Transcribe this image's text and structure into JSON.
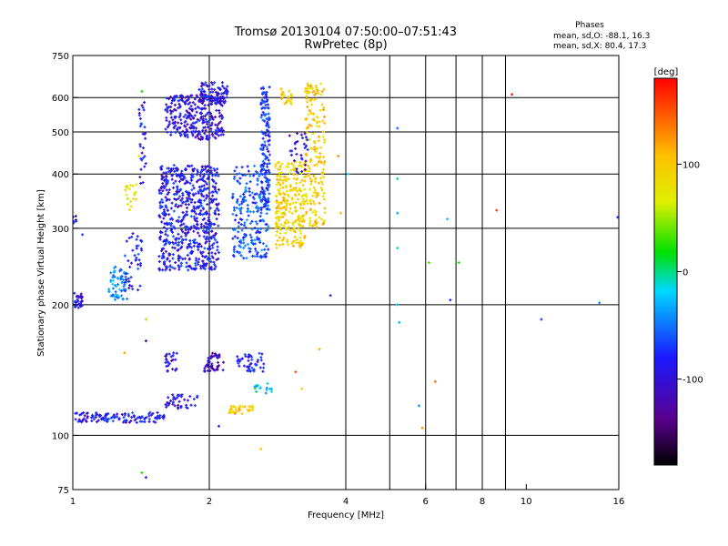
{
  "chart_data": {
    "type": "scatter",
    "title": "Tromsø 20130104 07:50:00–07:51:43",
    "subtitle": "RwPretec (8p)",
    "xlabel": "Frequency [MHz]",
    "ylabel": "Stationary phase Virtual Height [km]",
    "x_scale": "log",
    "y_scale": "log",
    "xlim": [
      1,
      16
    ],
    "ylim": [
      75,
      750
    ],
    "x_ticks": [
      1,
      2,
      4,
      6,
      8,
      10,
      16
    ],
    "x_tick_labels": [
      "1",
      "2",
      "4",
      "6",
      "8",
      "10",
      "16"
    ],
    "x_grid": [
      2,
      4,
      5,
      6,
      7,
      8,
      9
    ],
    "y_ticks": [
      75,
      100,
      200,
      300,
      400,
      500,
      600,
      750
    ],
    "y_tick_labels": [
      "75",
      "100",
      "200",
      "300",
      "400",
      "500",
      "600",
      "750"
    ],
    "y_grid": [
      100,
      200,
      300,
      400,
      500,
      600
    ],
    "grid": true,
    "stats": {
      "heading": "Phases",
      "line_o": "mean, sd,O: -88.1, 16.3",
      "line_x": "mean, sd,X:  80.4, 17.3"
    },
    "colorbar": {
      "label": "[deg]",
      "range": [
        -180,
        180
      ],
      "ticks": [
        100,
        0,
        -100
      ],
      "tick_labels": [
        "100",
        "0",
        "-100"
      ],
      "colormap": "rainbow: black → purple → blue → cyan → green → yellow → orange → red"
    },
    "clusters": [
      {
        "f": [
          1.0,
          1.05
        ],
        "h": [
          195,
          215
        ],
        "phase": -100,
        "n": 30
      },
      {
        "f": [
          1.0,
          1.02
        ],
        "h": [
          300,
          320
        ],
        "phase": -100,
        "n": 6
      },
      {
        "f": [
          1.2,
          1.32
        ],
        "h": [
          205,
          245
        ],
        "phase": -50,
        "n": 60
      },
      {
        "f": [
          1.3,
          1.42
        ],
        "h": [
          215,
          300
        ],
        "phase": -90,
        "n": 45
      },
      {
        "f": [
          1.55,
          2.1
        ],
        "h": [
          240,
          420
        ],
        "phase": -95,
        "n": 650
      },
      {
        "f": [
          1.6,
          2.15
        ],
        "h": [
          480,
          610
        ],
        "phase": -105,
        "n": 300
      },
      {
        "f": [
          1.9,
          2.2
        ],
        "h": [
          580,
          650
        ],
        "phase": -105,
        "n": 90
      },
      {
        "f": [
          2.25,
          2.7
        ],
        "h": [
          255,
          420
        ],
        "phase": -70,
        "n": 220
      },
      {
        "f": [
          2.6,
          2.72
        ],
        "h": [
          330,
          640
        ],
        "phase": -80,
        "n": 150
      },
      {
        "f": [
          2.8,
          3.25
        ],
        "h": [
          270,
          430
        ],
        "phase": 90,
        "n": 260
      },
      {
        "f": [
          3.25,
          3.6
        ],
        "h": [
          300,
          650
        ],
        "phase": 95,
        "n": 200
      },
      {
        "f": [
          2.85,
          3.05
        ],
        "h": [
          580,
          640
        ],
        "phase": 100,
        "n": 25
      },
      {
        "f": [
          3.0,
          3.3
        ],
        "h": [
          400,
          500
        ],
        "phase": -110,
        "n": 30
      },
      {
        "f": [
          1.0,
          1.6
        ],
        "h": [
          107,
          113
        ],
        "phase": -95,
        "n": 120
      },
      {
        "f": [
          1.6,
          1.9
        ],
        "h": [
          115,
          125
        ],
        "phase": -100,
        "n": 40
      },
      {
        "f": [
          1.6,
          1.7
        ],
        "h": [
          140,
          155
        ],
        "phase": -110,
        "n": 25
      },
      {
        "f": [
          1.95,
          2.15
        ],
        "h": [
          140,
          155
        ],
        "phase": -115,
        "n": 50
      },
      {
        "f": [
          2.3,
          2.65
        ],
        "h": [
          140,
          155
        ],
        "phase": -95,
        "n": 45
      },
      {
        "f": [
          2.2,
          2.5
        ],
        "h": [
          112,
          117
        ],
        "phase": 100,
        "n": 35
      },
      {
        "f": [
          2.5,
          2.75
        ],
        "h": [
          125,
          132
        ],
        "phase": -20,
        "n": 15
      },
      {
        "f": [
          1.4,
          1.45
        ],
        "h": [
          380,
          600
        ],
        "phase": -100,
        "n": 30
      },
      {
        "f": [
          1.3,
          1.4
        ],
        "h": [
          330,
          380
        ],
        "phase": 80,
        "n": 20
      }
    ],
    "points": [
      {
        "f": 5.2,
        "h": 510,
        "phase": -60
      },
      {
        "f": 5.2,
        "h": 390,
        "phase": 0
      },
      {
        "f": 5.2,
        "h": 325,
        "phase": -40
      },
      {
        "f": 5.2,
        "h": 270,
        "phase": -10
      },
      {
        "f": 5.2,
        "h": 200,
        "phase": -30
      },
      {
        "f": 5.25,
        "h": 182,
        "phase": -40
      },
      {
        "f": 5.8,
        "h": 117,
        "phase": -50
      },
      {
        "f": 5.9,
        "h": 104,
        "phase": 130
      },
      {
        "f": 6.3,
        "h": 133,
        "phase": 140
      },
      {
        "f": 6.1,
        "h": 250,
        "phase": 30
      },
      {
        "f": 6.8,
        "h": 205,
        "phase": -90
      },
      {
        "f": 7.1,
        "h": 250,
        "phase": 20
      },
      {
        "f": 6.7,
        "h": 315,
        "phase": -30
      },
      {
        "f": 8.6,
        "h": 330,
        "phase": 160
      },
      {
        "f": 9.3,
        "h": 610,
        "phase": 170
      },
      {
        "f": 10.8,
        "h": 185,
        "phase": -80
      },
      {
        "f": 14.5,
        "h": 202,
        "phase": -50
      },
      {
        "f": 15.9,
        "h": 318,
        "phase": -80
      },
      {
        "f": 4.05,
        "h": 400,
        "phase": -20
      },
      {
        "f": 3.9,
        "h": 325,
        "phase": 110
      },
      {
        "f": 3.85,
        "h": 440,
        "phase": 130
      },
      {
        "f": 3.7,
        "h": 210,
        "phase": -100
      },
      {
        "f": 3.5,
        "h": 158,
        "phase": 120
      },
      {
        "f": 3.1,
        "h": 140,
        "phase": 150
      },
      {
        "f": 3.2,
        "h": 128,
        "phase": 100
      },
      {
        "f": 2.6,
        "h": 93,
        "phase": 110
      },
      {
        "f": 2.1,
        "h": 105,
        "phase": -100
      },
      {
        "f": 1.45,
        "h": 80,
        "phase": -100
      },
      {
        "f": 1.42,
        "h": 82,
        "phase": 20
      },
      {
        "f": 1.45,
        "h": 185,
        "phase": 50
      },
      {
        "f": 1.3,
        "h": 155,
        "phase": 120
      },
      {
        "f": 1.42,
        "h": 620,
        "phase": 20
      },
      {
        "f": 1.4,
        "h": 440,
        "phase": 80
      },
      {
        "f": 1.45,
        "h": 165,
        "phase": -150
      },
      {
        "f": 1.05,
        "h": 290,
        "phase": -80
      }
    ]
  }
}
